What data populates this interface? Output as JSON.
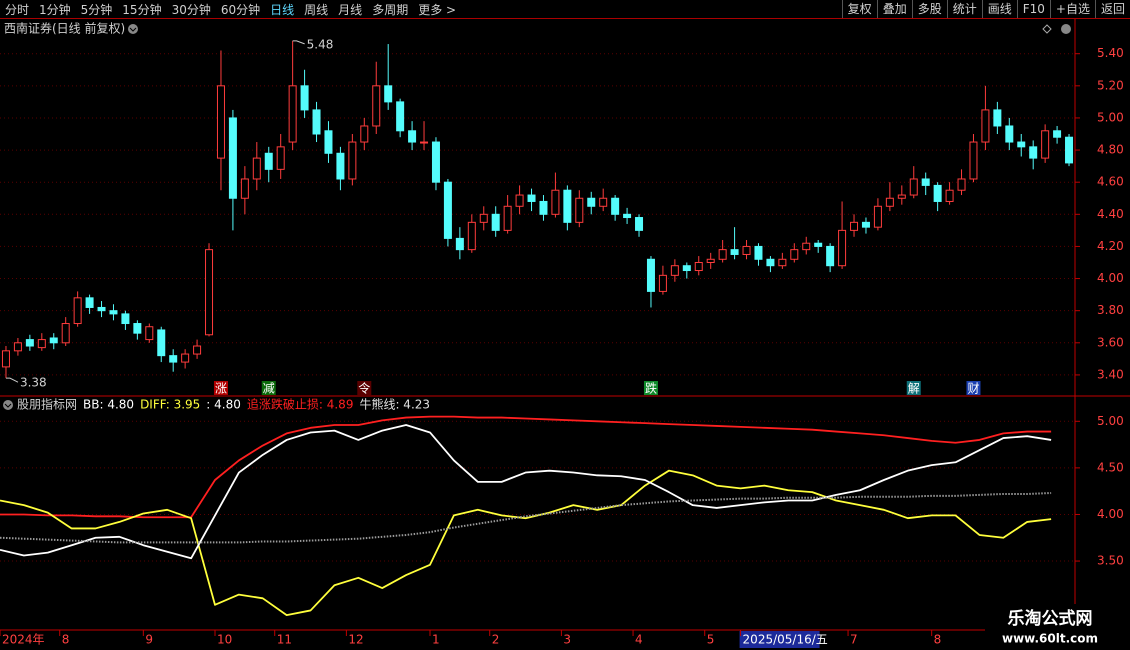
{
  "toolbar": {
    "periods": [
      "分时",
      "1分钟",
      "5分钟",
      "15分钟",
      "30分钟",
      "60分钟",
      "日线",
      "周线",
      "月线",
      "多周期",
      "更多 >"
    ],
    "buttons": [
      "复权",
      "叠加",
      "多股",
      "统计",
      "画线",
      "F10",
      "+自选",
      "返回"
    ]
  },
  "watermark": {
    "title": "乐淘公式网",
    "url": "www.60lt.com"
  },
  "chart_data": [
    {
      "type": "candlestick",
      "title": "西南证券(日线 前复权)",
      "categories": [
        "2024年",
        null,
        null,
        null,
        null,
        "8",
        null,
        null,
        null,
        null,
        null,
        null,
        "9",
        null,
        null,
        null,
        null,
        null,
        "10",
        null,
        null,
        null,
        null,
        "11",
        null,
        null,
        null,
        null,
        null,
        "12",
        null,
        null,
        null,
        null,
        null,
        null,
        "1",
        null,
        null,
        null,
        null,
        "2",
        null,
        null,
        null,
        null,
        null,
        "3",
        null,
        null,
        null,
        null,
        null,
        "4",
        null,
        null,
        null,
        null,
        null,
        "5",
        null,
        null,
        "2025/05/16/五",
        null,
        null,
        null,
        null,
        null,
        null,
        null,
        null,
        "7",
        null,
        null,
        null,
        null,
        null,
        null,
        "8",
        null,
        null,
        null,
        null,
        null,
        null,
        null,
        null,
        null,
        null,
        null
      ],
      "open": [
        3.45,
        3.55,
        3.62,
        3.57,
        3.63,
        3.6,
        3.72,
        3.88,
        3.82,
        3.8,
        3.78,
        3.72,
        3.62,
        3.68,
        3.52,
        3.48,
        3.53,
        3.65,
        4.75,
        5.0,
        4.5,
        4.62,
        4.78,
        4.68,
        4.85,
        5.2,
        5.05,
        4.92,
        4.78,
        4.62,
        4.85,
        4.95,
        5.2,
        5.1,
        4.92,
        4.85,
        4.85,
        4.6,
        4.25,
        4.18,
        4.35,
        4.4,
        4.3,
        4.45,
        4.52,
        4.48,
        4.4,
        4.55,
        4.35,
        4.5,
        4.45,
        4.5,
        4.4,
        4.38,
        4.12,
        3.92,
        4.02,
        4.08,
        4.05,
        4.1,
        4.12,
        4.18,
        4.15,
        4.2,
        4.12,
        4.08,
        4.12,
        4.18,
        4.22,
        4.2,
        4.08,
        4.3,
        4.35,
        4.32,
        4.45,
        4.5,
        4.52,
        4.62,
        4.58,
        4.48,
        4.55,
        4.62,
        4.85,
        5.05,
        4.95,
        4.85,
        4.82,
        4.75,
        4.92,
        4.88
      ],
      "high": [
        3.58,
        3.63,
        3.65,
        3.66,
        3.66,
        3.76,
        3.92,
        3.9,
        3.86,
        3.84,
        3.8,
        3.74,
        3.72,
        3.7,
        3.56,
        3.56,
        3.62,
        4.22,
        5.42,
        5.05,
        4.7,
        4.85,
        4.82,
        4.9,
        5.48,
        5.3,
        5.1,
        4.98,
        4.82,
        4.9,
        5.0,
        5.35,
        5.46,
        5.12,
        4.98,
        4.98,
        4.88,
        4.62,
        4.32,
        4.4,
        4.45,
        4.45,
        4.52,
        4.58,
        4.56,
        4.52,
        4.66,
        4.58,
        4.55,
        4.54,
        4.56,
        4.52,
        4.44,
        4.4,
        4.14,
        4.08,
        4.12,
        4.1,
        4.14,
        4.16,
        4.24,
        4.32,
        4.24,
        4.22,
        4.14,
        4.16,
        4.22,
        4.26,
        4.24,
        4.22,
        4.48,
        4.4,
        4.38,
        4.5,
        4.6,
        4.58,
        4.7,
        4.66,
        4.6,
        4.6,
        4.68,
        4.9,
        5.2,
        5.1,
        5.0,
        4.9,
        4.86,
        4.96,
        4.95,
        4.9
      ],
      "low": [
        3.38,
        3.52,
        3.55,
        3.55,
        3.56,
        3.58,
        3.7,
        3.78,
        3.76,
        3.74,
        3.68,
        3.62,
        3.6,
        3.48,
        3.42,
        3.44,
        3.5,
        3.64,
        4.55,
        4.3,
        4.4,
        4.55,
        4.6,
        4.62,
        4.8,
        5.0,
        4.85,
        4.72,
        4.55,
        4.58,
        4.8,
        4.9,
        5.05,
        4.88,
        4.8,
        4.8,
        4.55,
        4.2,
        4.12,
        4.16,
        4.3,
        4.26,
        4.28,
        4.4,
        4.42,
        4.36,
        4.38,
        4.3,
        4.32,
        4.4,
        4.42,
        4.36,
        4.34,
        4.26,
        3.82,
        3.9,
        3.98,
        4.0,
        4.02,
        4.06,
        4.1,
        4.12,
        4.12,
        4.08,
        4.04,
        4.06,
        4.1,
        4.15,
        4.16,
        4.04,
        4.06,
        4.26,
        4.28,
        4.3,
        4.42,
        4.46,
        4.5,
        4.52,
        4.42,
        4.46,
        4.52,
        4.6,
        4.8,
        4.9,
        4.8,
        4.76,
        4.68,
        4.72,
        4.84,
        4.7
      ],
      "close": [
        3.55,
        3.6,
        3.58,
        3.62,
        3.6,
        3.72,
        3.88,
        3.82,
        3.8,
        3.78,
        3.72,
        3.66,
        3.7,
        3.52,
        3.48,
        3.53,
        3.58,
        4.18,
        5.2,
        4.5,
        4.62,
        4.75,
        4.68,
        4.82,
        5.2,
        5.05,
        4.9,
        4.78,
        4.62,
        4.85,
        4.95,
        5.2,
        5.1,
        4.92,
        4.85,
        4.85,
        4.6,
        4.25,
        4.18,
        4.35,
        4.4,
        4.3,
        4.45,
        4.52,
        4.48,
        4.4,
        4.55,
        4.35,
        4.5,
        4.45,
        4.5,
        4.4,
        4.38,
        4.3,
        3.92,
        4.02,
        4.08,
        4.05,
        4.1,
        4.12,
        4.18,
        4.15,
        4.2,
        4.12,
        4.08,
        4.12,
        4.18,
        4.22,
        4.2,
        4.08,
        4.3,
        4.35,
        4.32,
        4.45,
        4.5,
        4.52,
        4.62,
        4.58,
        4.48,
        4.55,
        4.62,
        4.85,
        5.05,
        4.95,
        4.85,
        4.82,
        4.75,
        4.92,
        4.88,
        4.72
      ],
      "up_color": "#ff3c3c",
      "down_color": "#54fcfc",
      "ylim": [
        3.275,
        5.56
      ],
      "yticks": [
        {
          "value": 3.4,
          "label": "3.40"
        },
        {
          "value": 3.6,
          "label": "3.60"
        },
        {
          "value": 3.8,
          "label": "3.80"
        },
        {
          "value": 4.0,
          "label": "4.00"
        },
        {
          "value": 4.2,
          "label": "4.20"
        },
        {
          "value": 4.4,
          "label": "4.40"
        },
        {
          "value": 4.6,
          "label": "4.60"
        },
        {
          "value": 4.8,
          "label": "4.80"
        },
        {
          "value": 5.0,
          "label": "5.00"
        },
        {
          "value": 5.2,
          "label": "5.20"
        },
        {
          "value": 5.4,
          "label": "5.40"
        }
      ],
      "grid": true,
      "annotations": [
        {
          "index": 24,
          "value": 5.48,
          "at": "high"
        },
        {
          "index": 0,
          "value": 3.38,
          "at": "low"
        }
      ],
      "events": [
        {
          "label": "涨",
          "index": 18,
          "color": "#b00000"
        },
        {
          "label": "减",
          "index": 22,
          "color": "#0b6b0b"
        },
        {
          "label": "令",
          "index": 30,
          "color": "#5a0000"
        },
        {
          "label": "跌",
          "index": 54,
          "color": "#0f8a2a"
        },
        {
          "label": "解",
          "index": 76,
          "color": "#0d6f78"
        },
        {
          "label": "财",
          "index": 81,
          "color": "#1a3fb0"
        }
      ]
    },
    {
      "type": "line",
      "title": "股朋指标网",
      "legend": [
        {
          "text": "BB: 4.80",
          "color": "#ffffff"
        },
        {
          "text": "DIFF: 3.95",
          "color": "#ffff3c"
        },
        {
          "text": ": 4.80",
          "color": "#ffffff"
        },
        {
          "text": "追涨跌破止损: 4.89",
          "color": "#ff2020"
        },
        {
          "text": "牛熊线: 4.23",
          "color": "#e0e0e0"
        }
      ],
      "series": [
        {
          "color": "#ff2020",
          "style": "solid",
          "values": [
            4.0,
            4.0,
            3.99,
            3.99,
            3.98,
            3.98,
            3.97,
            3.97,
            3.97,
            4.37,
            4.58,
            4.74,
            4.87,
            4.93,
            4.96,
            4.96,
            5.01,
            5.04,
            5.05,
            5.05,
            5.04,
            5.04,
            5.03,
            5.02,
            5.01,
            5.0,
            4.99,
            4.98,
            4.97,
            4.96,
            4.95,
            4.94,
            4.93,
            4.92,
            4.91,
            4.89,
            4.87,
            4.85,
            4.82,
            4.79,
            4.77,
            4.8,
            4.87,
            4.89,
            4.89
          ]
        },
        {
          "color": "#ffff3c",
          "style": "solid",
          "values": [
            4.15,
            4.1,
            4.02,
            3.85,
            3.85,
            3.92,
            4.01,
            4.05,
            3.96,
            3.03,
            3.14,
            3.1,
            2.92,
            2.97,
            3.24,
            3.32,
            3.21,
            3.35,
            3.46,
            3.99,
            4.05,
            3.99,
            3.96,
            4.02,
            4.1,
            4.05,
            4.1,
            4.31,
            4.47,
            4.42,
            4.31,
            4.28,
            4.31,
            4.26,
            4.24,
            4.15,
            4.1,
            4.05,
            3.96,
            3.99,
            3.99,
            3.78,
            3.75,
            3.92,
            3.95
          ]
        },
        {
          "color": "#ffffff",
          "style": "solid",
          "values": [
            3.62,
            3.56,
            3.59,
            3.67,
            3.75,
            3.76,
            3.67,
            3.6,
            3.53,
            3.99,
            4.45,
            4.64,
            4.8,
            4.88,
            4.9,
            4.8,
            4.9,
            4.96,
            4.88,
            4.58,
            4.35,
            4.35,
            4.45,
            4.47,
            4.45,
            4.42,
            4.41,
            4.37,
            4.24,
            4.1,
            4.07,
            4.1,
            4.13,
            4.15,
            4.15,
            4.21,
            4.26,
            4.37,
            4.47,
            4.53,
            4.56,
            4.69,
            4.82,
            4.84,
            4.8
          ]
        },
        {
          "color": "#9a9a9a",
          "style": "dotted",
          "values": [
            3.75,
            3.74,
            3.73,
            3.72,
            3.71,
            3.7,
            3.7,
            3.7,
            3.7,
            3.7,
            3.7,
            3.71,
            3.71,
            3.72,
            3.73,
            3.74,
            3.76,
            3.78,
            3.81,
            3.86,
            3.9,
            3.94,
            3.98,
            4.01,
            4.04,
            4.07,
            4.1,
            4.12,
            4.14,
            4.15,
            4.16,
            4.17,
            4.17,
            4.18,
            4.18,
            4.18,
            4.19,
            4.19,
            4.19,
            4.2,
            4.2,
            4.21,
            4.22,
            4.22,
            4.23
          ]
        }
      ],
      "ylim": [
        2.76,
        5.25
      ],
      "yticks": [
        {
          "value": 3.5,
          "label": "3.50"
        },
        {
          "value": 4.0,
          "label": "4.00"
        },
        {
          "value": 4.5,
          "label": "4.50"
        },
        {
          "value": 5.0,
          "label": "5.00"
        }
      ],
      "grid": true
    }
  ]
}
